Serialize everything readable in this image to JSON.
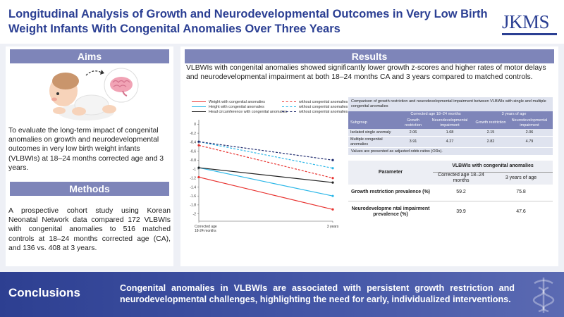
{
  "header": {
    "title": "Longitudinal Analysis of Growth and Neurodevelopmental Outcomes in Very Low Birth Weight Infants With Congenital Anomalies Over Three Years",
    "logo": "JKMS"
  },
  "aims": {
    "heading": "Aims",
    "text": "To evaluate the long-term impact of congenital anomalies on growth and neurodevelopmental outcomes in very low birth weight infants (VLBWIs) at 18–24 months corrected age and 3 years."
  },
  "methods": {
    "heading": "Methods",
    "text": "A prospective cohort study using Korean Neonatal Network data compared 172 VLBWIs with congenital anomalies to 516 matched controls at 18–24 months corrected age (CA), and 136 vs. 408 at 3 years."
  },
  "results": {
    "heading": "Results",
    "text": "VLBWIs with congenital anomalies showed significantly lower growth z-scores and higher rates of motor delays and neurodevelopmental impairment at both 18–24 months CA and 3 years compared to matched controls."
  },
  "chart_data": {
    "type": "line",
    "x": [
      "Corrected age 18-24 months",
      "3 years"
    ],
    "yticks": [
      0,
      -0.2,
      -0.4,
      -0.6,
      -0.8,
      -1,
      -1.2,
      -1.4,
      -1.6,
      -1.8,
      -2
    ],
    "ylim": [
      -2.1,
      0.1
    ],
    "series": [
      {
        "name": "Weight with congenital anomalies",
        "color": "#e8322f",
        "dashed": false,
        "values": [
          -1.18,
          -1.9
        ]
      },
      {
        "name": "Height with congenital anomalies",
        "color": "#2bb7e8",
        "dashed": false,
        "values": [
          -0.97,
          -1.6
        ]
      },
      {
        "name": "Head circumference with congenital anomalies",
        "color": "#222222",
        "dashed": false,
        "values": [
          -0.97,
          -1.3
        ]
      },
      {
        "name": "without congenital anomalies",
        "color": "#e8322f",
        "dashed": true,
        "values": [
          -0.47,
          -1.2
        ]
      },
      {
        "name": "without congenital anomalies",
        "color": "#2bb7e8",
        "dashed": true,
        "values": [
          -0.39,
          -0.98
        ]
      },
      {
        "name": "without congenital anomalies",
        "color": "#1e2a6e",
        "dashed": true,
        "values": [
          -0.39,
          -0.8
        ]
      }
    ]
  },
  "table1": {
    "caption": "Comparison of growth restriction and neurodevelopmental impairment between VLBWIs with single and multiple congenital anomalies",
    "group_headers": [
      "Corrected age 18–24 months",
      "3 years of age"
    ],
    "col_headers": [
      "Subgroup",
      "Growth restriction",
      "Neurodevelopmental impairment",
      "Growth restriction",
      "Neurodevelopmental impairment"
    ],
    "rows": [
      [
        "Isolated single anomaly",
        "2.06",
        "1.68",
        "2.15",
        "2.06"
      ],
      [
        "Multiple congenital anomalies",
        "3.91",
        "4.27",
        "2.82",
        "4.79"
      ]
    ],
    "footnote": "Values are presented as adjusted odds ratios (ORs)."
  },
  "table2": {
    "param_header": "Parameter",
    "group_header": "VLBWIs with congenital anomalies",
    "col1": "Corrected age 18–24 months",
    "col2": "3 years of age",
    "rows": [
      [
        "Growth restriction prevalence (%)",
        "59.2",
        "75.8"
      ],
      [
        "Neurodevelopme ntal impairment prevalence (%)",
        "39.9",
        "47.6"
      ]
    ]
  },
  "conclusions": {
    "heading": "Conclusions",
    "text": "Congenital anomalies in VLBWIs are associated with persistent growth restriction and neurodevelopmental challenges, highlighting the need for early, individualized interventions."
  }
}
